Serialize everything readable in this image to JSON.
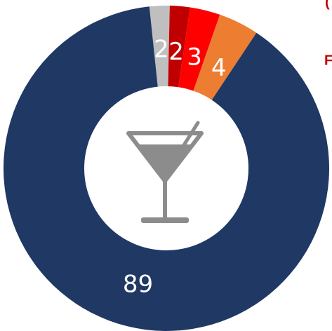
{
  "chart_data": {
    "type": "pie",
    "values": [
      2,
      2,
      3,
      4,
      89
    ],
    "colors": [
      "#bfbfbf",
      "#c00000",
      "#ff0000",
      "#ed7d31",
      "#1f3864"
    ],
    "donut": true,
    "annotations": [
      "(",
      "F"
    ]
  }
}
